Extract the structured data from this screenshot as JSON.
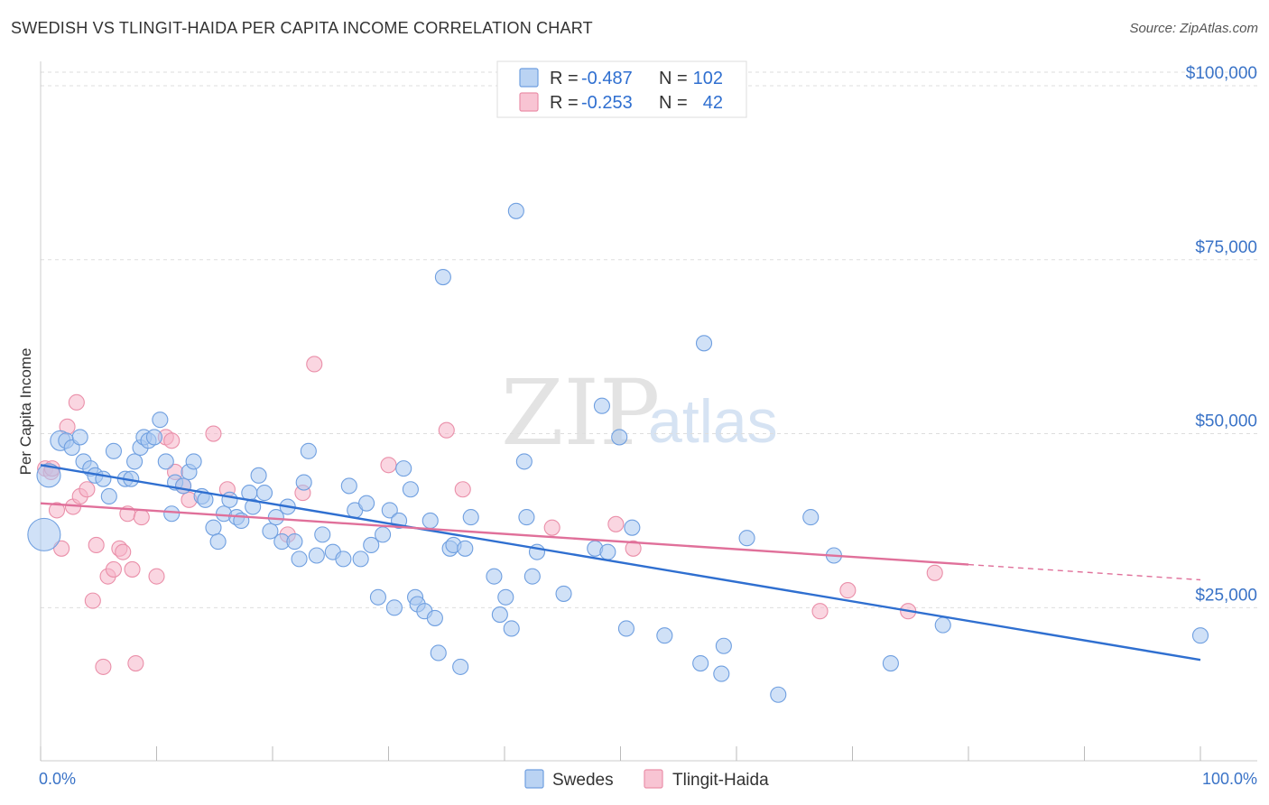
{
  "title": "SWEDISH VS TLINGIT-HAIDA PER CAPITA INCOME CORRELATION CHART",
  "source": "Source: ZipAtlas.com",
  "watermark": {
    "part1": "ZIP",
    "part2": "atlas"
  },
  "legend": {
    "rows": [
      {
        "r_label": "R =",
        "r_value": "-0.487",
        "n_label": "N =",
        "n_value": "102",
        "color": "#a9c8f0"
      },
      {
        "r_label": "R =",
        "r_value": "-0.253",
        "n_label": "N =",
        "n_value": "42",
        "color": "#f6b5c8"
      }
    ]
  },
  "chart_data": {
    "type": "scatter",
    "xlabel": "",
    "ylabel": "Per Capita Income",
    "xlim": [
      0,
      100
    ],
    "ylim": [
      3000,
      103500
    ],
    "x_tick_labels": [
      "0.0%",
      "100.0%"
    ],
    "y_ticks": [
      25000,
      50000,
      75000,
      100000
    ],
    "y_tick_labels": [
      "$25,000",
      "$50,000",
      "$75,000",
      "$100,000"
    ],
    "grid": true,
    "legend_position": "bottom-center",
    "series": [
      {
        "name": "Swedes",
        "color": "#a9c8f0",
        "stroke": "#6f9fe0",
        "trend_color": "#2f6fd0",
        "trend": {
          "x0": 0,
          "y0": 45500,
          "x1": 100,
          "y1": 17500,
          "dashed_from": null
        },
        "points": [
          [
            0.3,
            35500
          ],
          [
            0.7,
            44000
          ],
          [
            1.7,
            49000
          ],
          [
            2.2,
            49000
          ],
          [
            2.7,
            48000
          ],
          [
            3.4,
            49500
          ],
          [
            3.7,
            46000
          ],
          [
            4.3,
            45000
          ],
          [
            4.7,
            44000
          ],
          [
            5.4,
            43500
          ],
          [
            5.9,
            41000
          ],
          [
            6.3,
            47500
          ],
          [
            7.3,
            43500
          ],
          [
            7.8,
            43500
          ],
          [
            8.1,
            46000
          ],
          [
            8.6,
            48000
          ],
          [
            8.9,
            49500
          ],
          [
            9.3,
            49000
          ],
          [
            9.8,
            49500
          ],
          [
            10.3,
            52000
          ],
          [
            10.8,
            46000
          ],
          [
            11.3,
            38500
          ],
          [
            11.6,
            43000
          ],
          [
            12.3,
            42500
          ],
          [
            12.8,
            44500
          ],
          [
            13.2,
            46000
          ],
          [
            13.9,
            41000
          ],
          [
            14.2,
            40500
          ],
          [
            14.9,
            36500
          ],
          [
            15.3,
            34500
          ],
          [
            15.8,
            38500
          ],
          [
            16.3,
            40500
          ],
          [
            16.9,
            38000
          ],
          [
            17.3,
            37500
          ],
          [
            18.0,
            41500
          ],
          [
            18.3,
            39500
          ],
          [
            18.8,
            44000
          ],
          [
            19.3,
            41500
          ],
          [
            19.8,
            36000
          ],
          [
            20.3,
            38000
          ],
          [
            20.8,
            34500
          ],
          [
            21.3,
            39500
          ],
          [
            21.9,
            34500
          ],
          [
            22.3,
            32000
          ],
          [
            22.7,
            43000
          ],
          [
            23.1,
            47500
          ],
          [
            23.8,
            32500
          ],
          [
            24.3,
            35500
          ],
          [
            25.2,
            33000
          ],
          [
            26.1,
            32000
          ],
          [
            26.6,
            42500
          ],
          [
            27.1,
            39000
          ],
          [
            27.6,
            32000
          ],
          [
            28.1,
            40000
          ],
          [
            28.5,
            34000
          ],
          [
            29.5,
            35500
          ],
          [
            29.1,
            26500
          ],
          [
            30.1,
            39000
          ],
          [
            30.5,
            25000
          ],
          [
            30.9,
            37500
          ],
          [
            31.3,
            45000
          ],
          [
            31.9,
            42000
          ],
          [
            32.3,
            26500
          ],
          [
            32.5,
            25500
          ],
          [
            33.1,
            24500
          ],
          [
            33.6,
            37500
          ],
          [
            34.0,
            23500
          ],
          [
            34.3,
            18500
          ],
          [
            34.7,
            72500
          ],
          [
            35.3,
            33500
          ],
          [
            35.6,
            34000
          ],
          [
            36.2,
            16500
          ],
          [
            36.6,
            33500
          ],
          [
            37.1,
            38000
          ],
          [
            39.1,
            29500
          ],
          [
            39.6,
            24000
          ],
          [
            40.1,
            26500
          ],
          [
            40.6,
            22000
          ],
          [
            41.0,
            82000
          ],
          [
            41.7,
            46000
          ],
          [
            41.9,
            38000
          ],
          [
            42.4,
            29500
          ],
          [
            42.8,
            33000
          ],
          [
            45.1,
            27000
          ],
          [
            47.8,
            33500
          ],
          [
            48.4,
            54000
          ],
          [
            48.9,
            33000
          ],
          [
            49.9,
            49500
          ],
          [
            50.5,
            22000
          ],
          [
            51.0,
            36500
          ],
          [
            53.8,
            21000
          ],
          [
            56.9,
            17000
          ],
          [
            57.2,
            63000
          ],
          [
            58.7,
            15500
          ],
          [
            58.9,
            19500
          ],
          [
            60.9,
            35000
          ],
          [
            63.6,
            12500
          ],
          [
            66.4,
            38000
          ],
          [
            68.4,
            32500
          ],
          [
            73.3,
            17000
          ],
          [
            77.8,
            22500
          ],
          [
            100.0,
            21000
          ]
        ]
      },
      {
        "name": "Tlingit-Haida",
        "color": "#f6b5c8",
        "stroke": "#ea8fa9",
        "trend_color": "#e0709a",
        "trend": {
          "x0": 0,
          "y0": 40000,
          "x1": 100,
          "y1": 29000,
          "dashed_from": 80
        },
        "points": [
          [
            0.4,
            45000
          ],
          [
            0.9,
            44500
          ],
          [
            1.4,
            39000
          ],
          [
            1.8,
            33500
          ],
          [
            2.3,
            51000
          ],
          [
            2.8,
            39500
          ],
          [
            3.1,
            54500
          ],
          [
            3.4,
            41000
          ],
          [
            4.0,
            42000
          ],
          [
            4.5,
            26000
          ],
          [
            4.8,
            34000
          ],
          [
            5.4,
            16500
          ],
          [
            5.8,
            29500
          ],
          [
            6.3,
            30500
          ],
          [
            6.8,
            33500
          ],
          [
            7.1,
            33000
          ],
          [
            7.5,
            38500
          ],
          [
            7.9,
            30500
          ],
          [
            8.2,
            17000
          ],
          [
            8.7,
            38000
          ],
          [
            10.0,
            29500
          ],
          [
            10.8,
            49500
          ],
          [
            11.3,
            49000
          ],
          [
            11.6,
            44500
          ],
          [
            12.3,
            42500
          ],
          [
            12.8,
            40500
          ],
          [
            14.9,
            50000
          ],
          [
            16.1,
            42000
          ],
          [
            21.3,
            35500
          ],
          [
            22.6,
            41500
          ],
          [
            23.6,
            60000
          ],
          [
            30.0,
            45500
          ],
          [
            35.0,
            50500
          ],
          [
            36.4,
            42000
          ],
          [
            44.1,
            36500
          ],
          [
            49.6,
            37000
          ],
          [
            51.1,
            33500
          ],
          [
            67.2,
            24500
          ],
          [
            69.6,
            27500
          ],
          [
            74.8,
            24500
          ],
          [
            77.1,
            30000
          ],
          [
            1.0,
            45000
          ]
        ]
      }
    ]
  }
}
